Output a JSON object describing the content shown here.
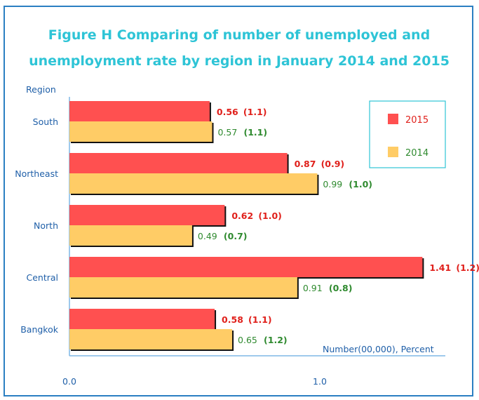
{
  "chart_data": {
    "type": "bar",
    "orientation": "horizontal",
    "title": [
      "Figure H Comparing of number of unemployed and",
      "unemployment rate by region in January 2014 and 2015"
    ],
    "ylabel": "Region",
    "xlabel": "Number(00,000), Percent",
    "categories": [
      "South",
      "Northeast",
      "North",
      "Central",
      "Bangkok"
    ],
    "x_ticks": [
      "0.0",
      "1.0"
    ],
    "xlim": [
      0,
      1.5
    ],
    "series": [
      {
        "name": "2015",
        "color": "#ff5050",
        "values": [
          0.56,
          0.87,
          0.62,
          1.41,
          0.58
        ],
        "value_labels": [
          "0.56",
          "0.87",
          "0.62",
          "1.41",
          "0.58"
        ],
        "rate_labels": [
          "(1.1)",
          "(0.9)",
          "(1.0)",
          "(1.2)",
          "(1.1)"
        ]
      },
      {
        "name": "2014",
        "color": "#ffcc66",
        "values": [
          0.57,
          0.99,
          0.49,
          0.91,
          0.65
        ],
        "value_labels": [
          "0.57",
          "0.99",
          "0.49",
          "0.91",
          "0.65"
        ],
        "rate_labels": [
          "(1.1)",
          "(1.0)",
          "(0.7)",
          "(0.8)",
          "(1.2)"
        ]
      }
    ],
    "legend_position": "top-right",
    "grid": false
  }
}
